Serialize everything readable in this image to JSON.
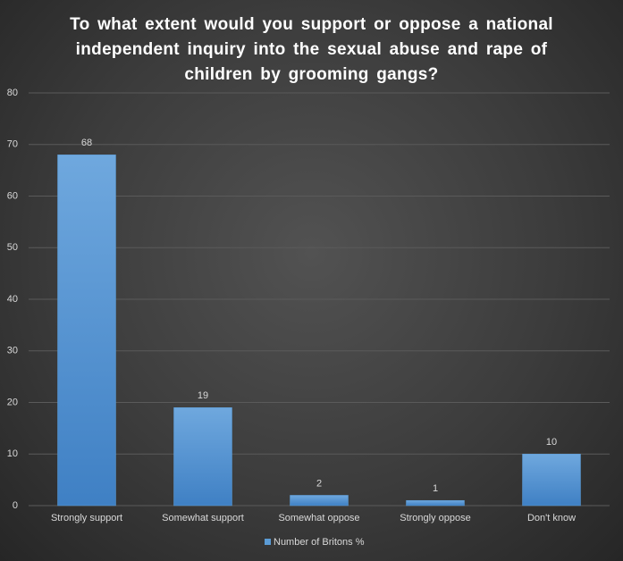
{
  "chart_data": {
    "type": "bar",
    "title": "To what extent would you support or oppose a national independent inquiry into the sexual abuse and rape of children by grooming gangs?",
    "categories": [
      "Strongly support",
      "Somewhat support",
      "Somewhat oppose",
      "Strongly oppose",
      "Don't know"
    ],
    "series": [
      {
        "name": "Number of Britons %",
        "color": "#5b9bd5",
        "values": [
          68,
          19,
          2,
          1,
          10
        ]
      }
    ],
    "ylim": [
      0,
      80
    ],
    "yticks": [
      0,
      10,
      20,
      30,
      40,
      50,
      60,
      70,
      80
    ],
    "grid": true,
    "legend": "bottom"
  }
}
